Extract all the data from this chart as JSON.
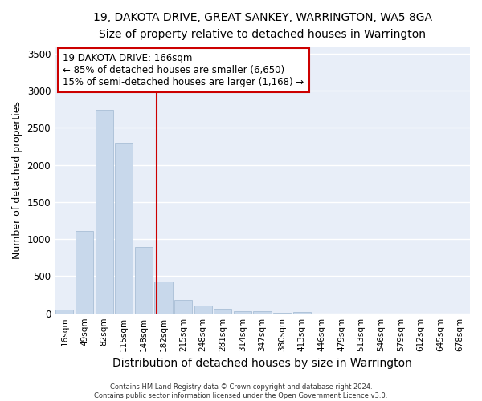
{
  "title": "19, DAKOTA DRIVE, GREAT SANKEY, WARRINGTON, WA5 8GA",
  "subtitle": "Size of property relative to detached houses in Warrington",
  "xlabel": "Distribution of detached houses by size in Warrington",
  "ylabel": "Number of detached properties",
  "bar_color": "#c8d8eb",
  "bar_edge_color": "#a0b8d0",
  "background_color": "#e8eef8",
  "grid_color": "#ffffff",
  "categories": [
    "16sqm",
    "49sqm",
    "82sqm",
    "115sqm",
    "148sqm",
    "182sqm",
    "215sqm",
    "248sqm",
    "281sqm",
    "314sqm",
    "347sqm",
    "380sqm",
    "413sqm",
    "446sqm",
    "479sqm",
    "513sqm",
    "546sqm",
    "579sqm",
    "612sqm",
    "645sqm",
    "678sqm"
  ],
  "values": [
    55,
    1110,
    2740,
    2300,
    890,
    430,
    175,
    100,
    65,
    30,
    28,
    10,
    22,
    0,
    0,
    0,
    0,
    0,
    0,
    0,
    0
  ],
  "ylim": [
    0,
    3600
  ],
  "yticks": [
    0,
    500,
    1000,
    1500,
    2000,
    2500,
    3000,
    3500
  ],
  "vline_x": 4.67,
  "vline_color": "#cc0000",
  "annotation_line1": "19 DAKOTA DRIVE: 166sqm",
  "annotation_line2": "← 85% of detached houses are smaller (6,650)",
  "annotation_line3": "15% of semi-detached houses are larger (1,168) →",
  "annotation_box_color": "#ffffff",
  "annotation_box_edge": "#cc0000",
  "footer_line1": "Contains HM Land Registry data © Crown copyright and database right 2024.",
  "footer_line2": "Contains public sector information licensed under the Open Government Licence v3.0."
}
